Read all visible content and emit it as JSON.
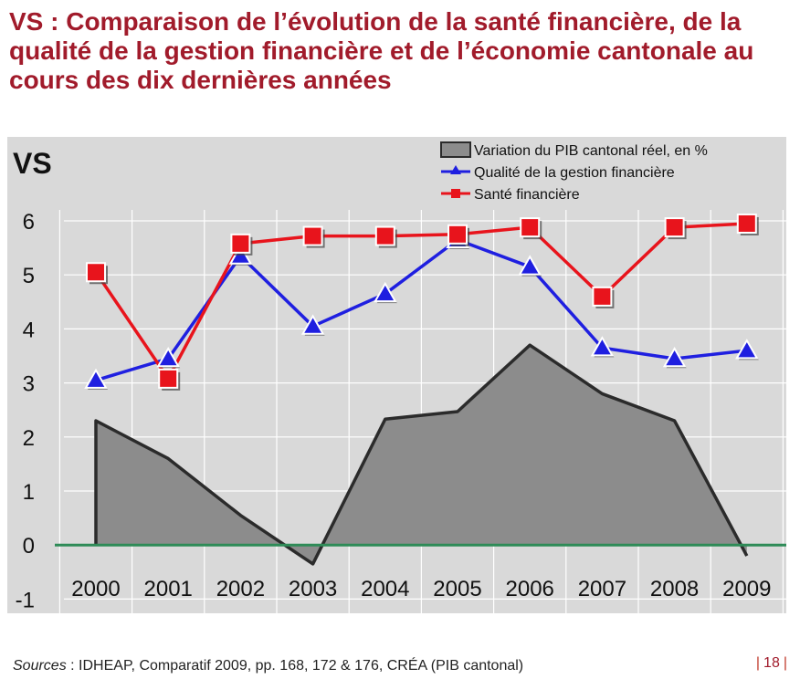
{
  "slide": {
    "title": "VS : Comparaison de l’évolution de la santé financière, de la qualité de la gestion financière et de l’économie cantonale au cours des dix dernières années",
    "footer_label": "Sources",
    "footer_text": " : IDHEAP, Comparatif 2009, pp. 168, 172 & 176, CRÉA (PIB cantonal)",
    "page_number": "18"
  },
  "colors": {
    "title": "#a11b2b",
    "plot_bg": "#d9d9d9",
    "area_fill": "#8c8c8c",
    "area_stroke": "#2b2b2b",
    "quality": "#1f1fe0",
    "health": "#e8141c",
    "zero_line": "#2e8b57"
  },
  "chart_data": {
    "type": "line",
    "title": "VS",
    "categories": [
      "2000",
      "2001",
      "2002",
      "2003",
      "2004",
      "2005",
      "2006",
      "2007",
      "2008",
      "2009"
    ],
    "ylim": [
      -1,
      6
    ],
    "yticks": [
      -1,
      0,
      1,
      2,
      3,
      4,
      5,
      6
    ],
    "grid": true,
    "legend_position": "top-right",
    "series": [
      {
        "name": "Variation du PIB cantonal réel, en %",
        "kind": "area",
        "values": [
          2.3,
          1.6,
          0.55,
          -0.35,
          2.33,
          2.47,
          3.7,
          2.8,
          2.3,
          -0.2
        ]
      },
      {
        "name": "Qualité de la gestion financière",
        "kind": "line",
        "marker": "triangle",
        "values": [
          3.05,
          3.45,
          5.35,
          4.05,
          4.65,
          5.65,
          5.15,
          3.65,
          3.45,
          3.6
        ]
      },
      {
        "name": "Santé financière",
        "kind": "line",
        "marker": "square",
        "values": [
          5.05,
          3.08,
          5.58,
          5.72,
          5.72,
          5.75,
          5.88,
          4.6,
          5.88,
          5.95
        ]
      }
    ]
  }
}
